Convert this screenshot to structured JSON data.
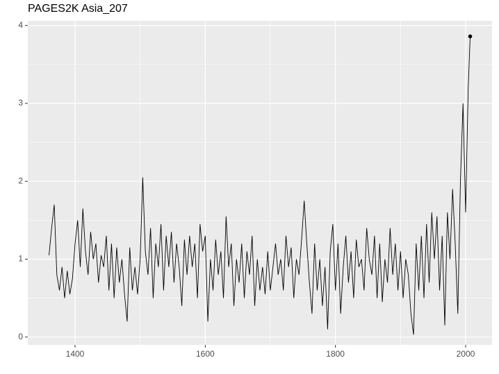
{
  "chart_data": {
    "type": "line",
    "title": "PAGES2K Asia_207",
    "x": [
      1360,
      1364,
      1368,
      1372,
      1376,
      1380,
      1384,
      1388,
      1392,
      1396,
      1400,
      1404,
      1408,
      1412,
      1416,
      1420,
      1424,
      1428,
      1432,
      1436,
      1440,
      1444,
      1448,
      1452,
      1456,
      1460,
      1464,
      1468,
      1472,
      1476,
      1480,
      1484,
      1488,
      1492,
      1496,
      1500,
      1504,
      1508,
      1512,
      1516,
      1520,
      1524,
      1528,
      1532,
      1536,
      1540,
      1544,
      1548,
      1552,
      1556,
      1560,
      1564,
      1568,
      1572,
      1576,
      1580,
      1584,
      1588,
      1592,
      1596,
      1600,
      1604,
      1608,
      1612,
      1616,
      1620,
      1624,
      1628,
      1632,
      1636,
      1640,
      1644,
      1648,
      1652,
      1656,
      1660,
      1664,
      1668,
      1672,
      1676,
      1680,
      1684,
      1688,
      1692,
      1696,
      1700,
      1704,
      1708,
      1712,
      1716,
      1720,
      1724,
      1728,
      1732,
      1736,
      1740,
      1744,
      1748,
      1752,
      1756,
      1760,
      1764,
      1768,
      1772,
      1776,
      1780,
      1784,
      1788,
      1792,
      1796,
      1800,
      1804,
      1808,
      1812,
      1816,
      1820,
      1824,
      1828,
      1832,
      1836,
      1840,
      1844,
      1848,
      1852,
      1856,
      1860,
      1864,
      1868,
      1872,
      1876,
      1880,
      1884,
      1888,
      1892,
      1896,
      1900,
      1904,
      1908,
      1912,
      1916,
      1920,
      1924,
      1928,
      1932,
      1936,
      1940,
      1944,
      1948,
      1952,
      1956,
      1960,
      1964,
      1968,
      1972,
      1976,
      1980,
      1984,
      1988,
      1992,
      1996,
      2000,
      2004,
      2007
    ],
    "series": [
      {
        "color": "#000000",
        "values": [
          1.05,
          1.4,
          1.7,
          0.8,
          0.6,
          0.9,
          0.5,
          0.85,
          0.55,
          0.75,
          1.2,
          1.5,
          0.9,
          1.65,
          1.1,
          0.8,
          1.35,
          1.0,
          1.2,
          0.7,
          1.05,
          0.9,
          1.3,
          0.6,
          1.2,
          0.5,
          1.15,
          0.7,
          1.0,
          0.55,
          0.2,
          1.15,
          0.6,
          0.9,
          0.55,
          1.0,
          2.05,
          1.1,
          0.8,
          1.4,
          0.5,
          1.2,
          0.9,
          1.45,
          0.6,
          1.3,
          0.9,
          1.35,
          0.7,
          1.2,
          0.9,
          0.4,
          1.25,
          0.8,
          1.3,
          0.9,
          1.2,
          0.5,
          1.45,
          1.1,
          1.3,
          0.2,
          1.0,
          0.6,
          1.25,
          0.8,
          1.1,
          0.5,
          1.55,
          0.9,
          1.2,
          0.4,
          1.0,
          0.7,
          1.2,
          0.5,
          1.1,
          0.8,
          1.3,
          0.4,
          1.0,
          0.6,
          0.9,
          0.55,
          1.1,
          0.6,
          0.9,
          1.2,
          0.8,
          1.0,
          0.6,
          1.3,
          0.9,
          1.15,
          0.5,
          1.0,
          0.8,
          1.25,
          1.75,
          1.2,
          0.7,
          0.3,
          1.2,
          0.6,
          1.0,
          0.4,
          0.9,
          0.1,
          1.1,
          1.45,
          0.6,
          1.2,
          0.3,
          0.9,
          1.3,
          0.7,
          1.1,
          0.5,
          1.25,
          0.9,
          1.0,
          0.6,
          1.4,
          1.0,
          0.8,
          1.3,
          0.5,
          1.2,
          0.45,
          1.0,
          0.7,
          1.4,
          0.8,
          1.2,
          0.6,
          1.1,
          0.5,
          1.0,
          0.8,
          0.3,
          0.03,
          1.2,
          0.6,
          1.3,
          0.5,
          1.45,
          0.7,
          1.6,
          1.0,
          1.55,
          0.6,
          1.3,
          0.15,
          1.6,
          1.0,
          1.9,
          1.2,
          0.3,
          2.0,
          3.0,
          1.6,
          3.2,
          3.86
        ]
      }
    ],
    "highlight_last": true,
    "xlim": [
      1327.4,
      2040.6
    ],
    "ylim": [
      -0.1,
      4.06
    ],
    "xticks": [
      1400,
      1600,
      1800,
      2000
    ],
    "yticks": [
      0,
      1,
      2,
      3,
      4
    ],
    "grid": true
  }
}
